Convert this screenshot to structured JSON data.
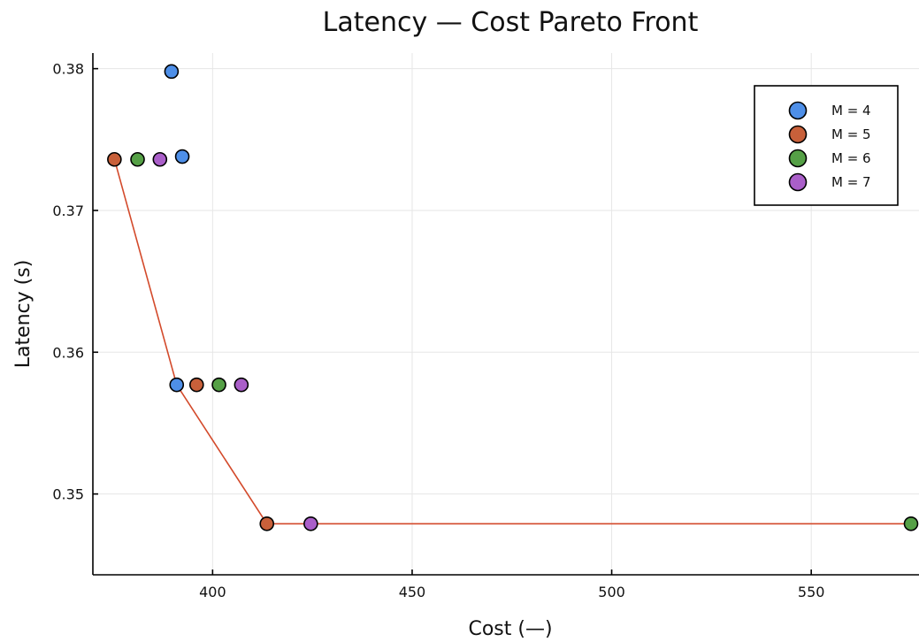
{
  "chart_data": {
    "type": "scatter",
    "title": "Latency — Cost Pareto Front",
    "xlabel": "Cost (—)",
    "ylabel": "Latency (s)",
    "xlim": [
      370,
      577
    ],
    "ylim": [
      0.3443,
      0.3811
    ],
    "xticks": [
      {
        "value": 400,
        "label": "400"
      },
      {
        "value": 450,
        "label": "450"
      },
      {
        "value": 500,
        "label": "500"
      },
      {
        "value": 550,
        "label": "550"
      }
    ],
    "yticks": [
      {
        "value": 0.35,
        "label": "0.35"
      },
      {
        "value": 0.36,
        "label": "0.36"
      },
      {
        "value": 0.37,
        "label": "0.37"
      },
      {
        "value": 0.38,
        "label": "0.38"
      }
    ],
    "grid": true,
    "legend_position": "top-right",
    "series": [
      {
        "name": "M = 4",
        "color": "#4e8fe8",
        "points": [
          [
            389.7,
            0.3798
          ],
          [
            392.4,
            0.3738
          ],
          [
            391.0,
            0.3577
          ]
        ]
      },
      {
        "name": "M = 5",
        "color": "#c8603a",
        "points": [
          [
            375.4,
            0.3736
          ],
          [
            396.0,
            0.3577
          ],
          [
            413.6,
            0.3479
          ]
        ]
      },
      {
        "name": "M = 6",
        "color": "#55a046",
        "points": [
          [
            381.2,
            0.3736
          ],
          [
            401.6,
            0.3577
          ],
          [
            575.0,
            0.3479
          ]
        ]
      },
      {
        "name": "M = 7",
        "color": "#aa5fc9",
        "points": [
          [
            386.8,
            0.3736
          ],
          [
            407.2,
            0.3577
          ],
          [
            424.6,
            0.3479
          ]
        ]
      }
    ],
    "pareto_front": {
      "color": "#d34a2b",
      "points": [
        [
          375.4,
          0.3736
        ],
        [
          391.0,
          0.3577
        ],
        [
          413.6,
          0.3479
        ],
        [
          575.0,
          0.3479
        ]
      ]
    }
  }
}
